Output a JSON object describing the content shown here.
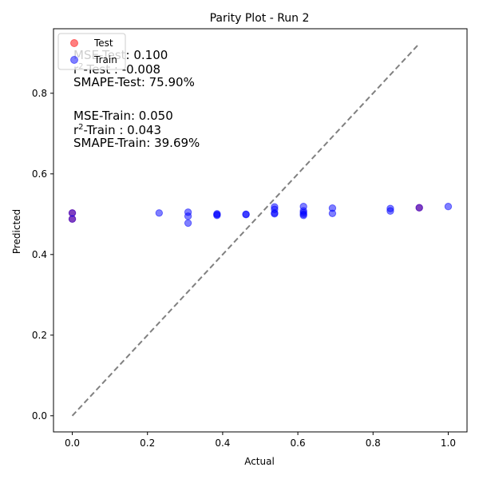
{
  "chart_data": {
    "type": "scatter",
    "title": "Parity Plot - Run 2",
    "xlabel": "Actual",
    "ylabel": "Predicted",
    "xlim": [
      -0.05,
      1.05
    ],
    "ylim": [
      -0.04,
      0.96
    ],
    "xticks": [
      {
        "value": 0.0,
        "label": "0.0"
      },
      {
        "value": 0.2,
        "label": "0.2"
      },
      {
        "value": 0.4,
        "label": "0.4"
      },
      {
        "value": 0.6,
        "label": "0.6"
      },
      {
        "value": 0.8,
        "label": "0.8"
      },
      {
        "value": 1.0,
        "label": "1.0"
      }
    ],
    "yticks": [
      {
        "value": 0.0,
        "label": "0.0"
      },
      {
        "value": 0.2,
        "label": "0.2"
      },
      {
        "value": 0.4,
        "label": "0.4"
      },
      {
        "value": 0.6,
        "label": "0.6"
      },
      {
        "value": 0.8,
        "label": "0.8"
      }
    ],
    "grid": false,
    "legend": {
      "placement": "top-left",
      "entries": [
        {
          "name": "Test",
          "color": "#ff0000"
        },
        {
          "name": "Train",
          "color": "#0000ff"
        }
      ]
    },
    "reference_line": {
      "style": "dashed",
      "color": "#808080",
      "from": [
        0.0,
        0.0
      ],
      "to": [
        0.923,
        0.923
      ]
    },
    "series": [
      {
        "name": "Test",
        "color": "#ff0000",
        "opacity": 0.5,
        "points": [
          {
            "x": 0.0,
            "y": 0.503
          },
          {
            "x": 0.0,
            "y": 0.488
          },
          {
            "x": 0.923,
            "y": 0.516
          }
        ]
      },
      {
        "name": "Train",
        "color": "#0000ff",
        "opacity": 0.5,
        "points": [
          {
            "x": 0.0,
            "y": 0.503
          },
          {
            "x": 0.0,
            "y": 0.488
          },
          {
            "x": 0.231,
            "y": 0.503
          },
          {
            "x": 0.308,
            "y": 0.505
          },
          {
            "x": 0.308,
            "y": 0.495
          },
          {
            "x": 0.308,
            "y": 0.478
          },
          {
            "x": 0.385,
            "y": 0.501
          },
          {
            "x": 0.385,
            "y": 0.499
          },
          {
            "x": 0.385,
            "y": 0.497
          },
          {
            "x": 0.462,
            "y": 0.5
          },
          {
            "x": 0.462,
            "y": 0.499
          },
          {
            "x": 0.538,
            "y": 0.518
          },
          {
            "x": 0.538,
            "y": 0.512
          },
          {
            "x": 0.538,
            "y": 0.503
          },
          {
            "x": 0.538,
            "y": 0.501
          },
          {
            "x": 0.615,
            "y": 0.519
          },
          {
            "x": 0.615,
            "y": 0.508
          },
          {
            "x": 0.615,
            "y": 0.504
          },
          {
            "x": 0.615,
            "y": 0.5
          },
          {
            "x": 0.615,
            "y": 0.497
          },
          {
            "x": 0.692,
            "y": 0.515
          },
          {
            "x": 0.692,
            "y": 0.502
          },
          {
            "x": 0.846,
            "y": 0.514
          },
          {
            "x": 0.846,
            "y": 0.508
          },
          {
            "x": 0.923,
            "y": 0.516
          },
          {
            "x": 1.0,
            "y": 0.519
          }
        ]
      }
    ],
    "annotations": [
      {
        "key": "mse_test",
        "lines": [
          "MSE-Test: 0.100"
        ]
      },
      {
        "key": "r2_test",
        "prefix": "r",
        "sup": "2",
        "suffix": "-Test : -0.008"
      },
      {
        "key": "smape_test",
        "lines": [
          "SMAPE-Test: 75.90%"
        ]
      },
      {
        "key": "mse_train",
        "lines": [
          "MSE-Train: 0.050"
        ]
      },
      {
        "key": "r2_train",
        "prefix": "r",
        "sup": "2",
        "suffix": "-Train : 0.043"
      },
      {
        "key": "smape_train",
        "lines": [
          "SMAPE-Train: 39.69%"
        ]
      }
    ]
  }
}
